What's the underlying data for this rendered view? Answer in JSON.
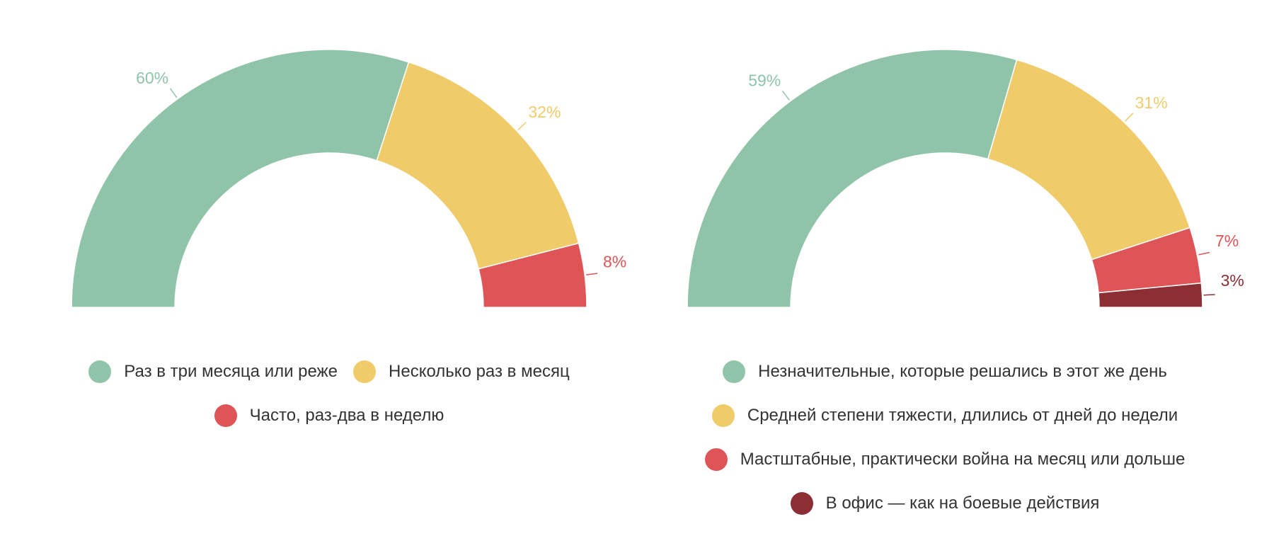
{
  "chart_data": [
    {
      "type": "semi-donut",
      "categories": [
        "Раз в три месяца или реже",
        "Несколько раз в месяц",
        "Часто, раз-два в неделю"
      ],
      "values": [
        60,
        32,
        8
      ],
      "value_labels": [
        "60%",
        "32%",
        "8%"
      ],
      "colors": [
        "#8fc4a8",
        "#efcb6a",
        "#de5457"
      ],
      "legend": "bottom"
    },
    {
      "type": "semi-donut",
      "categories": [
        "Незначительные, которые решались в этот же день",
        "Средней степени тяжести, длились от дней до недели",
        "Мастштабные, практически война на месяц или дольше",
        "В офис — как на боевые действия"
      ],
      "values": [
        59,
        31,
        7,
        3
      ],
      "value_labels": [
        "59%",
        "31%",
        "7%",
        "3%"
      ],
      "colors": [
        "#8fc4a8",
        "#efcb6a",
        "#de5457",
        "#8b2f35"
      ],
      "legend": "bottom"
    }
  ]
}
